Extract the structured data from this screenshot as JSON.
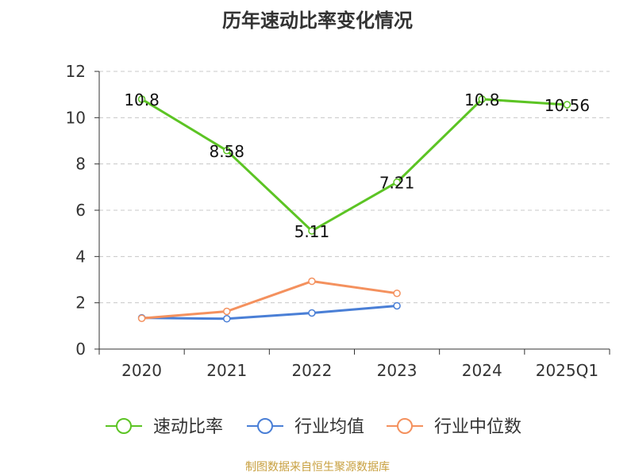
{
  "title": "历年速动比率变化情况",
  "source": "制图数据来自恒生聚源数据库",
  "chart_data": {
    "type": "line",
    "categories": [
      "2020",
      "2021",
      "2022",
      "2023",
      "2024",
      "2025Q1"
    ],
    "ylim": [
      0,
      12
    ],
    "yticks": [
      0,
      2,
      4,
      6,
      8,
      10,
      12
    ],
    "grid": true,
    "legend_position": "bottom",
    "series": [
      {
        "name": "速动比率",
        "color": "#5cc424",
        "values": [
          10.8,
          8.58,
          5.11,
          7.21,
          10.8,
          10.56
        ],
        "labels": [
          "10.8",
          "8.58",
          "5.11",
          "7.21",
          "10.8",
          "10.56"
        ]
      },
      {
        "name": "行业均值",
        "color": "#4a7fd6",
        "values": [
          1.35,
          1.31,
          1.56,
          1.87,
          null,
          null
        ]
      },
      {
        "name": "行业中位数",
        "color": "#f4915e",
        "values": [
          1.33,
          1.63,
          2.93,
          2.41,
          null,
          null
        ]
      }
    ]
  }
}
